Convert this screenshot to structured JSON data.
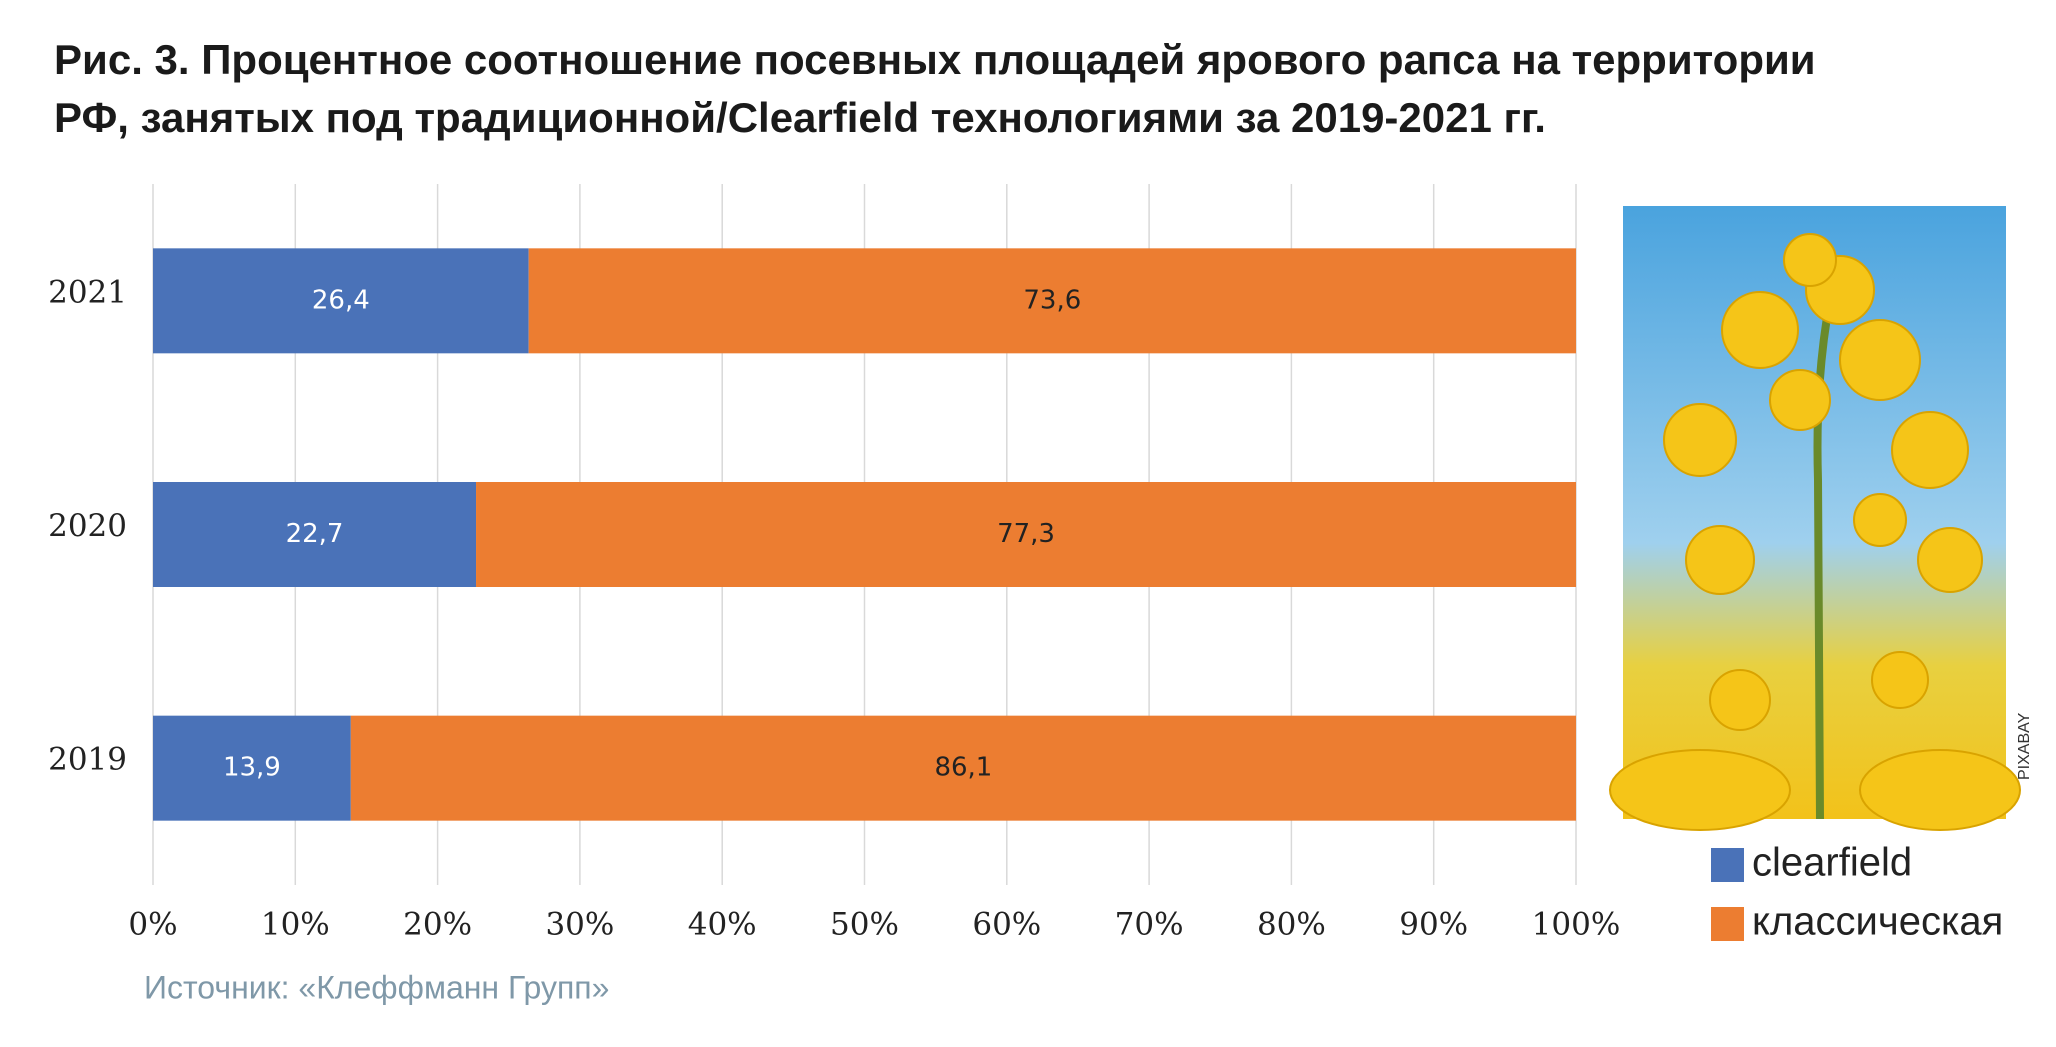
{
  "chart_data": {
    "type": "stacked-barh",
    "title": [
      "Рис. 3. Процентное соотношение посевных площадей ярового рапса на территории",
      "РФ, занятых под традиционной/Clearfield технологиями за 2019-2021 гг."
    ],
    "categories": [
      "2021",
      "2020",
      "2019"
    ],
    "series": [
      {
        "name": "clearfield",
        "color": "#4a72b8",
        "values": [
          26.4,
          22.7,
          13.9
        ],
        "value_labels": [
          "26,4",
          "22,7",
          "13,9"
        ]
      },
      {
        "name": "классическая",
        "color": "#ec7d31",
        "values": [
          73.6,
          77.3,
          86.1
        ],
        "value_labels": [
          "73,6",
          "77,3",
          "86,1"
        ]
      }
    ],
    "xlim": [
      0,
      100
    ],
    "xticks": [
      {
        "value": 0,
        "label": "0%"
      },
      {
        "value": 10,
        "label": "10%"
      },
      {
        "value": 20,
        "label": "20%"
      },
      {
        "value": 30,
        "label": "30%"
      },
      {
        "value": 40,
        "label": "40%"
      },
      {
        "value": 50,
        "label": "50%"
      },
      {
        "value": 60,
        "label": "60%"
      },
      {
        "value": 70,
        "label": "70%"
      },
      {
        "value": 80,
        "label": "80%"
      },
      {
        "value": 90,
        "label": "90%"
      },
      {
        "value": 100,
        "label": "100%"
      }
    ],
    "grid": true,
    "source": "Источник: «Клеффманн Групп»",
    "photo_credit": "PIXABAY"
  }
}
